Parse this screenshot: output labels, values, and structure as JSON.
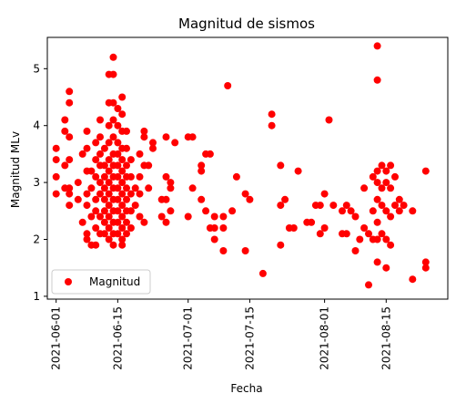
{
  "chart_data": {
    "type": "scatter",
    "title": "Magnitud de sismos",
    "xlabel": "Fecha",
    "ylabel": "Magnitud MLv",
    "x_is_date": true,
    "xlim": [
      "2021-05-30",
      "2021-08-29"
    ],
    "ylim": [
      0.95,
      5.55
    ],
    "x_ticks": [
      "2021-06-01",
      "2021-06-15",
      "2021-07-01",
      "2021-07-15",
      "2021-08-01",
      "2021-08-15"
    ],
    "y_ticks": [
      1,
      2,
      3,
      4,
      5
    ],
    "grid": false,
    "legend_position": "lower-left",
    "colors": {
      "series": "#ff0000",
      "axes": "#000000",
      "background": "#ffffff"
    },
    "series": [
      {
        "name": "Magnitud",
        "points": [
          [
            "2021-06-01",
            3.6
          ],
          [
            "2021-06-01",
            3.4
          ],
          [
            "2021-06-01",
            3.1
          ],
          [
            "2021-06-01",
            2.8
          ],
          [
            "2021-06-03",
            4.1
          ],
          [
            "2021-06-03",
            3.9
          ],
          [
            "2021-06-03",
            3.3
          ],
          [
            "2021-06-03",
            2.9
          ],
          [
            "2021-06-04",
            4.6
          ],
          [
            "2021-06-04",
            4.4
          ],
          [
            "2021-06-04",
            3.8
          ],
          [
            "2021-06-04",
            3.4
          ],
          [
            "2021-06-04",
            2.9
          ],
          [
            "2021-06-04",
            2.8
          ],
          [
            "2021-06-04",
            2.6
          ],
          [
            "2021-06-06",
            3.0
          ],
          [
            "2021-06-06",
            2.7
          ],
          [
            "2021-06-07",
            3.5
          ],
          [
            "2021-06-07",
            2.3
          ],
          [
            "2021-06-08",
            3.9
          ],
          [
            "2021-06-08",
            3.6
          ],
          [
            "2021-06-08",
            3.2
          ],
          [
            "2021-06-08",
            2.8
          ],
          [
            "2021-06-08",
            2.6
          ],
          [
            "2021-06-08",
            2.1
          ],
          [
            "2021-06-08",
            2.0
          ],
          [
            "2021-06-09",
            3.2
          ],
          [
            "2021-06-09",
            2.9
          ],
          [
            "2021-06-09",
            2.4
          ],
          [
            "2021-06-09",
            1.9
          ],
          [
            "2021-06-10",
            3.7
          ],
          [
            "2021-06-10",
            3.4
          ],
          [
            "2021-06-10",
            3.1
          ],
          [
            "2021-06-10",
            2.7
          ],
          [
            "2021-06-10",
            2.5
          ],
          [
            "2021-06-10",
            2.2
          ],
          [
            "2021-06-10",
            1.9
          ],
          [
            "2021-06-11",
            4.1
          ],
          [
            "2021-06-11",
            3.8
          ],
          [
            "2021-06-11",
            3.5
          ],
          [
            "2021-06-11",
            3.3
          ],
          [
            "2021-06-11",
            3.0
          ],
          [
            "2021-06-11",
            2.8
          ],
          [
            "2021-06-11",
            2.4
          ],
          [
            "2021-06-11",
            2.1
          ],
          [
            "2021-06-12",
            3.6
          ],
          [
            "2021-06-12",
            3.3
          ],
          [
            "2021-06-12",
            3.1
          ],
          [
            "2021-06-12",
            2.9
          ],
          [
            "2021-06-12",
            2.7
          ],
          [
            "2021-06-12",
            2.5
          ],
          [
            "2021-06-12",
            2.3
          ],
          [
            "2021-06-12",
            2.1
          ],
          [
            "2021-06-13",
            4.9
          ],
          [
            "2021-06-13",
            4.4
          ],
          [
            "2021-06-13",
            4.0
          ],
          [
            "2021-06-13",
            3.7
          ],
          [
            "2021-06-13",
            3.4
          ],
          [
            "2021-06-13",
            3.2
          ],
          [
            "2021-06-13",
            3.0
          ],
          [
            "2021-06-13",
            2.8
          ],
          [
            "2021-06-13",
            2.6
          ],
          [
            "2021-06-13",
            2.4
          ],
          [
            "2021-06-13",
            2.2
          ],
          [
            "2021-06-13",
            2.0
          ],
          [
            "2021-06-14",
            5.2
          ],
          [
            "2021-06-14",
            4.9
          ],
          [
            "2021-06-14",
            4.4
          ],
          [
            "2021-06-14",
            4.1
          ],
          [
            "2021-06-14",
            3.8
          ],
          [
            "2021-06-14",
            3.5
          ],
          [
            "2021-06-14",
            3.3
          ],
          [
            "2021-06-14",
            3.1
          ],
          [
            "2021-06-14",
            2.9
          ],
          [
            "2021-06-14",
            2.7
          ],
          [
            "2021-06-14",
            2.5
          ],
          [
            "2021-06-14",
            2.3
          ],
          [
            "2021-06-14",
            2.1
          ],
          [
            "2021-06-14",
            1.9
          ],
          [
            "2021-06-15",
            4.3
          ],
          [
            "2021-06-15",
            4.0
          ],
          [
            "2021-06-15",
            3.7
          ],
          [
            "2021-06-15",
            3.5
          ],
          [
            "2021-06-15",
            3.3
          ],
          [
            "2021-06-15",
            3.1
          ],
          [
            "2021-06-15",
            2.9
          ],
          [
            "2021-06-15",
            2.7
          ],
          [
            "2021-06-15",
            2.5
          ],
          [
            "2021-06-15",
            2.3
          ],
          [
            "2021-06-15",
            2.1
          ],
          [
            "2021-06-16",
            4.5
          ],
          [
            "2021-06-16",
            4.2
          ],
          [
            "2021-06-16",
            3.9
          ],
          [
            "2021-06-16",
            3.6
          ],
          [
            "2021-06-16",
            3.4
          ],
          [
            "2021-06-16",
            3.2
          ],
          [
            "2021-06-16",
            3.0
          ],
          [
            "2021-06-16",
            2.8
          ],
          [
            "2021-06-16",
            2.6
          ],
          [
            "2021-06-16",
            2.4
          ],
          [
            "2021-06-16",
            2.2
          ],
          [
            "2021-06-16",
            2.0
          ],
          [
            "2021-06-16",
            1.9
          ],
          [
            "2021-06-17",
            3.9
          ],
          [
            "2021-06-17",
            3.6
          ],
          [
            "2021-06-17",
            3.3
          ],
          [
            "2021-06-17",
            3.1
          ],
          [
            "2021-06-17",
            2.9
          ],
          [
            "2021-06-17",
            2.7
          ],
          [
            "2021-06-17",
            2.5
          ],
          [
            "2021-06-17",
            2.3
          ],
          [
            "2021-06-17",
            2.1
          ],
          [
            "2021-06-18",
            3.4
          ],
          [
            "2021-06-18",
            3.1
          ],
          [
            "2021-06-18",
            2.8
          ],
          [
            "2021-06-18",
            2.5
          ],
          [
            "2021-06-18",
            2.2
          ],
          [
            "2021-06-19",
            2.9
          ],
          [
            "2021-06-19",
            2.6
          ],
          [
            "2021-06-20",
            3.5
          ],
          [
            "2021-06-20",
            3.1
          ],
          [
            "2021-06-20",
            2.8
          ],
          [
            "2021-06-20",
            2.4
          ],
          [
            "2021-06-21",
            3.9
          ],
          [
            "2021-06-21",
            3.8
          ],
          [
            "2021-06-21",
            3.3
          ],
          [
            "2021-06-21",
            2.3
          ],
          [
            "2021-06-22",
            3.3
          ],
          [
            "2021-06-22",
            2.9
          ],
          [
            "2021-06-23",
            3.7
          ],
          [
            "2021-06-23",
            3.6
          ],
          [
            "2021-06-25",
            2.7
          ],
          [
            "2021-06-25",
            2.4
          ],
          [
            "2021-06-26",
            3.8
          ],
          [
            "2021-06-26",
            3.1
          ],
          [
            "2021-06-26",
            2.7
          ],
          [
            "2021-06-26",
            2.3
          ],
          [
            "2021-06-27",
            3.0
          ],
          [
            "2021-06-27",
            2.9
          ],
          [
            "2021-06-27",
            2.5
          ],
          [
            "2021-06-28",
            3.7
          ],
          [
            "2021-07-01",
            3.8
          ],
          [
            "2021-07-01",
            2.4
          ],
          [
            "2021-07-02",
            3.8
          ],
          [
            "2021-07-02",
            2.9
          ],
          [
            "2021-07-04",
            3.3
          ],
          [
            "2021-07-04",
            3.2
          ],
          [
            "2021-07-04",
            2.7
          ],
          [
            "2021-07-05",
            3.5
          ],
          [
            "2021-07-05",
            2.5
          ],
          [
            "2021-07-06",
            3.5
          ],
          [
            "2021-07-06",
            2.2
          ],
          [
            "2021-07-07",
            2.4
          ],
          [
            "2021-07-07",
            2.2
          ],
          [
            "2021-07-07",
            2.0
          ],
          [
            "2021-07-09",
            2.4
          ],
          [
            "2021-07-09",
            2.2
          ],
          [
            "2021-07-09",
            1.8
          ],
          [
            "2021-07-10",
            4.7
          ],
          [
            "2021-07-11",
            2.5
          ],
          [
            "2021-07-12",
            3.1
          ],
          [
            "2021-07-14",
            2.8
          ],
          [
            "2021-07-14",
            1.8
          ],
          [
            "2021-07-15",
            2.7
          ],
          [
            "2021-07-18",
            1.4
          ],
          [
            "2021-07-20",
            4.2
          ],
          [
            "2021-07-20",
            4.0
          ],
          [
            "2021-07-22",
            3.3
          ],
          [
            "2021-07-22",
            2.6
          ],
          [
            "2021-07-22",
            1.9
          ],
          [
            "2021-07-23",
            2.7
          ],
          [
            "2021-07-24",
            2.2
          ],
          [
            "2021-07-25",
            2.2
          ],
          [
            "2021-07-26",
            3.2
          ],
          [
            "2021-07-28",
            2.3
          ],
          [
            "2021-07-29",
            2.3
          ],
          [
            "2021-07-30",
            2.6
          ],
          [
            "2021-07-31",
            2.6
          ],
          [
            "2021-07-31",
            2.1
          ],
          [
            "2021-08-01",
            2.8
          ],
          [
            "2021-08-01",
            2.2
          ],
          [
            "2021-08-02",
            4.1
          ],
          [
            "2021-08-03",
            2.6
          ],
          [
            "2021-08-05",
            2.5
          ],
          [
            "2021-08-05",
            2.1
          ],
          [
            "2021-08-06",
            2.6
          ],
          [
            "2021-08-06",
            2.1
          ],
          [
            "2021-08-07",
            2.5
          ],
          [
            "2021-08-08",
            2.4
          ],
          [
            "2021-08-08",
            1.8
          ],
          [
            "2021-08-09",
            2.0
          ],
          [
            "2021-08-10",
            2.9
          ],
          [
            "2021-08-10",
            2.2
          ],
          [
            "2021-08-11",
            2.1
          ],
          [
            "2021-08-11",
            1.2
          ],
          [
            "2021-08-12",
            3.1
          ],
          [
            "2021-08-12",
            2.5
          ],
          [
            "2021-08-12",
            2.0
          ],
          [
            "2021-08-13",
            5.4
          ],
          [
            "2021-08-13",
            4.8
          ],
          [
            "2021-08-13",
            3.2
          ],
          [
            "2021-08-13",
            3.0
          ],
          [
            "2021-08-13",
            2.7
          ],
          [
            "2021-08-13",
            2.3
          ],
          [
            "2021-08-13",
            2.0
          ],
          [
            "2021-08-13",
            1.6
          ],
          [
            "2021-08-14",
            3.3
          ],
          [
            "2021-08-14",
            2.9
          ],
          [
            "2021-08-14",
            2.6
          ],
          [
            "2021-08-14",
            2.1
          ],
          [
            "2021-08-15",
            3.2
          ],
          [
            "2021-08-15",
            3.0
          ],
          [
            "2021-08-15",
            2.5
          ],
          [
            "2021-08-15",
            2.0
          ],
          [
            "2021-08-15",
            1.5
          ],
          [
            "2021-08-16",
            3.3
          ],
          [
            "2021-08-16",
            2.9
          ],
          [
            "2021-08-16",
            2.4
          ],
          [
            "2021-08-16",
            1.9
          ],
          [
            "2021-08-17",
            3.1
          ],
          [
            "2021-08-17",
            2.6
          ],
          [
            "2021-08-18",
            2.7
          ],
          [
            "2021-08-18",
            2.5
          ],
          [
            "2021-08-19",
            2.6
          ],
          [
            "2021-08-21",
            2.5
          ],
          [
            "2021-08-21",
            1.3
          ],
          [
            "2021-08-24",
            3.2
          ],
          [
            "2021-08-24",
            1.6
          ],
          [
            "2021-08-24",
            1.5
          ]
        ]
      }
    ]
  }
}
